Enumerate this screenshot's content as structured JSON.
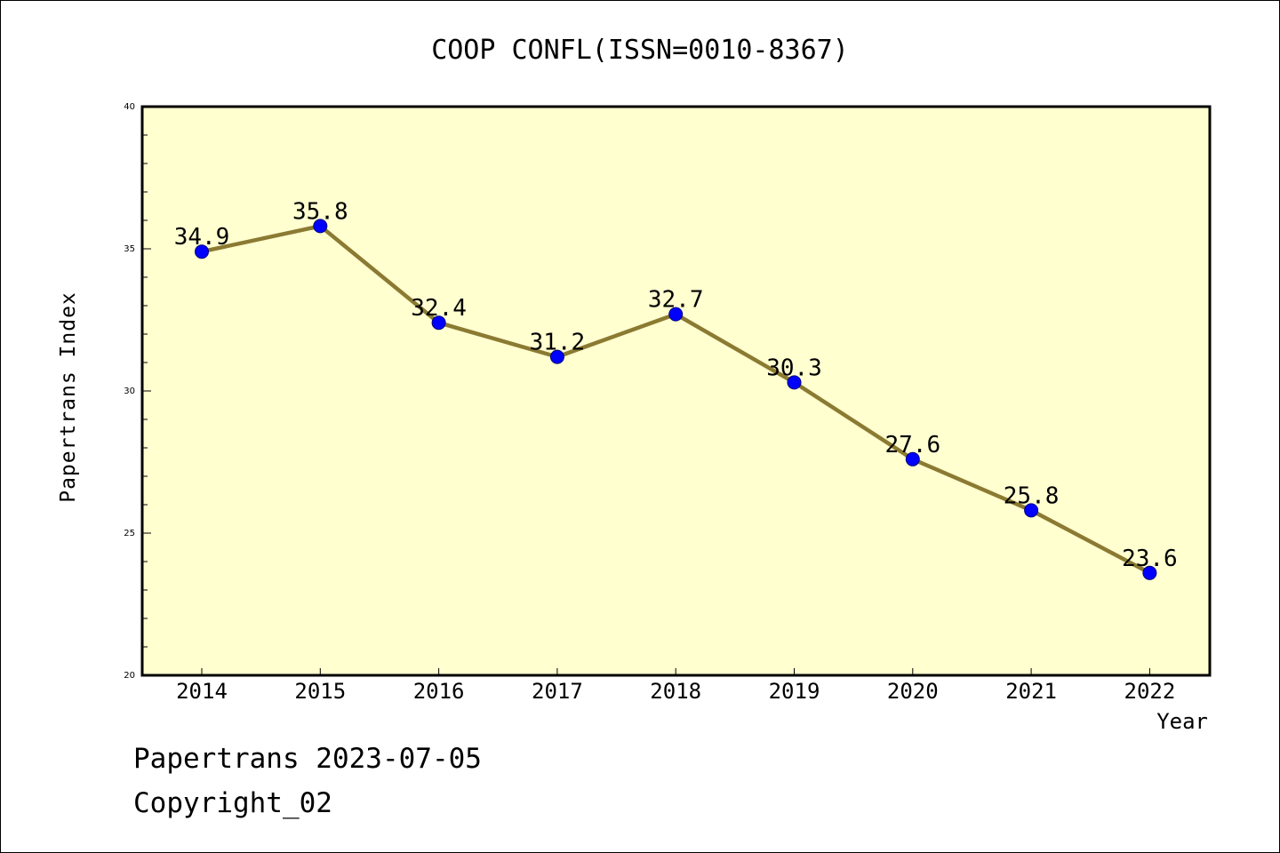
{
  "colors": {
    "plot_background": "#ffffd0",
    "line": "#8b7a32",
    "marker": "#0000ff",
    "axis": "#000000",
    "page_background": "#ffffff"
  },
  "footer": {
    "source_date": "Papertrans 2023-07-05",
    "copyright": "Copyright_02"
  },
  "chart_data": {
    "type": "line",
    "title": "COOP CONFL(ISSN=0010-8367)",
    "xlabel": "Year",
    "ylabel": "Papertrans Index",
    "categories": [
      "2014",
      "2015",
      "2016",
      "2017",
      "2018",
      "2019",
      "2020",
      "2021",
      "2022"
    ],
    "series": [
      {
        "values": [
          34.9,
          35.8,
          32.4,
          31.2,
          32.7,
          30.3,
          27.6,
          25.8,
          23.6
        ],
        "labels": [
          "34.9",
          "35.8",
          "32.4",
          "31.2",
          "32.7",
          "30.3",
          "27.6",
          "25.8",
          "23.6"
        ]
      }
    ],
    "ylim": [
      20,
      40
    ],
    "yticks": [
      "20",
      "25",
      "30",
      "35",
      "40"
    ],
    "grid": false,
    "marker": "circle"
  }
}
